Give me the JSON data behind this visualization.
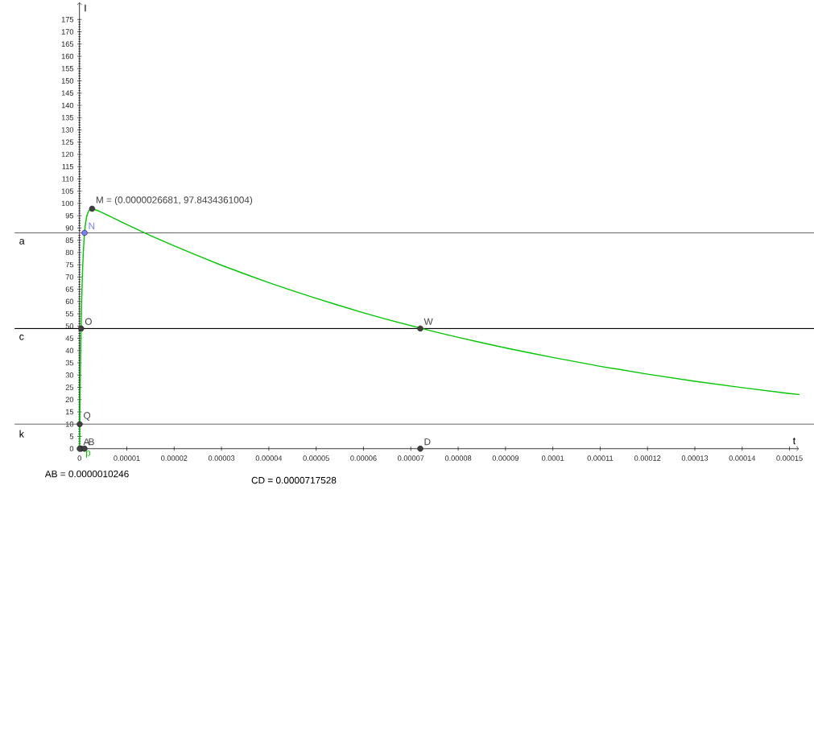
{
  "chart_data": {
    "type": "line",
    "xlabel": "t",
    "ylabel": "I",
    "marker": "circle",
    "xlim": [
      0,
      0.000152
    ],
    "ylim": [
      0,
      182
    ],
    "xticks": [
      {
        "value": 0,
        "label": "0"
      },
      {
        "value": 1e-05,
        "label": "0.00001"
      },
      {
        "value": 2e-05,
        "label": "0.00002"
      },
      {
        "value": 3e-05,
        "label": "0.00003"
      },
      {
        "value": 4e-05,
        "label": "0.00004"
      },
      {
        "value": 5e-05,
        "label": "0.00005"
      },
      {
        "value": 6e-05,
        "label": "0.00006"
      },
      {
        "value": 7e-05,
        "label": "0.00007"
      },
      {
        "value": 8e-05,
        "label": "0.00008"
      },
      {
        "value": 9e-05,
        "label": "0.00009"
      },
      {
        "value": 0.0001,
        "label": "0.0001"
      },
      {
        "value": 0.00011,
        "label": "0.00011"
      },
      {
        "value": 0.00012,
        "label": "0.00012"
      },
      {
        "value": 0.00013,
        "label": "0.00013"
      },
      {
        "value": 0.00014,
        "label": "0.00014"
      },
      {
        "value": 0.00015,
        "label": "0.00015"
      }
    ],
    "yticks": [
      0,
      5,
      10,
      15,
      20,
      25,
      30,
      35,
      40,
      45,
      50,
      55,
      60,
      65,
      70,
      75,
      80,
      85,
      90,
      95,
      100,
      105,
      110,
      115,
      120,
      125,
      130,
      135,
      140,
      145,
      150,
      155,
      160,
      165,
      170,
      175
    ],
    "series": [
      {
        "name": "p",
        "marker": "none",
        "color": "#00c800",
        "x": [
          0,
          5e-08,
          1e-07,
          2e-07,
          3e-07,
          4e-07,
          6e-07,
          8e-07,
          1e-06,
          1.1e-06,
          1.3e-06,
          1.6e-06,
          2e-06,
          2.6681e-06,
          4e-06,
          5e-06,
          1e-05,
          1.5e-05,
          2e-05,
          2.5e-05,
          3e-05,
          3.5e-05,
          4e-05,
          4.5e-05,
          5e-05,
          5.5e-05,
          6e-05,
          6.5e-05,
          7e-05,
          7.5e-05,
          8e-05,
          8.5e-05,
          9e-05,
          9.5e-05,
          0.0001,
          0.00011,
          0.00012,
          0.00013,
          0.00014,
          0.00015,
          0.000152
        ],
        "values": [
          0,
          9.6,
          18.2,
          33.1,
          45.3,
          55.2,
          70,
          79.8,
          86.3,
          88.7,
          92.2,
          95.3,
          97.1,
          97.8,
          97,
          96.1,
          91.4,
          86.9,
          82.7,
          78.7,
          74.8,
          71.2,
          67.7,
          64.4,
          61.3,
          58.3,
          55.4,
          52.7,
          50.2,
          47.7,
          45.4,
          43.2,
          41.1,
          39.1,
          37.2,
          33.6,
          30.4,
          27.5,
          24.9,
          22.5,
          22.1
        ]
      },
      {
        "name": "M = (0.0000026681, 97.8434361004)",
        "type": "scatter",
        "color": "#404040",
        "x": [
          2.6681e-06
        ],
        "values": [
          97.8434361004
        ]
      },
      {
        "name": "N",
        "type": "scatter",
        "color": "#7d7dff",
        "x": [
          1.07e-06
        ],
        "values": [
          88
        ]
      },
      {
        "name": "O",
        "type": "scatter",
        "color": "#404040",
        "x": [
          3.5e-07
        ],
        "values": [
          49
        ]
      },
      {
        "name": "W",
        "type": "scatter",
        "color": "#404040",
        "x": [
          7.2e-05
        ],
        "values": [
          49
        ]
      },
      {
        "name": "Q",
        "type": "scatter",
        "color": "#404040",
        "x": [
          5e-08
        ],
        "values": [
          10
        ]
      },
      {
        "type": "scatter",
        "color": "#404040",
        "x": [
          3.5e-07
        ],
        "values": [
          0
        ]
      },
      {
        "name": "A",
        "type": "scatter",
        "color": "#404040",
        "x": [
          5e-08
        ],
        "values": [
          0
        ]
      },
      {
        "name": "B",
        "type": "scatter",
        "color": "#404040",
        "x": [
          1.07e-06
        ],
        "values": [
          0
        ]
      },
      {
        "name": "D",
        "type": "scatter",
        "color": "#404040",
        "x": [
          7.2e-05
        ],
        "values": [
          0
        ]
      }
    ],
    "ref_lines": [
      {
        "axis": "y",
        "value": 88,
        "label": "a",
        "color": "#666666"
      },
      {
        "axis": "y",
        "value": 49,
        "label": "c",
        "color": "#000000"
      },
      {
        "axis": "y",
        "value": 10,
        "label": "k",
        "color": "#666666"
      }
    ],
    "annotations": [
      "AB = 0.0000010246",
      "CD = 0.0000717528"
    ]
  }
}
